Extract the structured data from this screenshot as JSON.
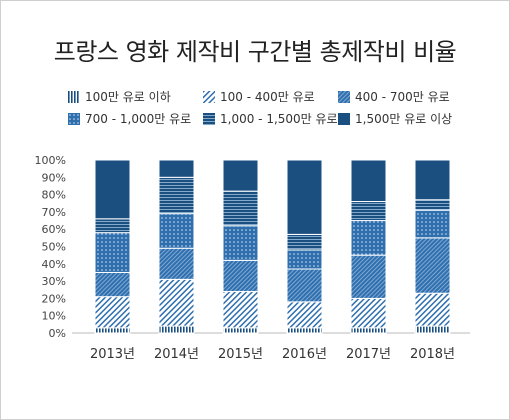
{
  "title": "프랑스 영화 제작비 구간별 총제작비 비율",
  "chart_data": {
    "type": "bar",
    "stacked": true,
    "categories": [
      "2013년",
      "2014년",
      "2015년",
      "2016년",
      "2017년",
      "2018년"
    ],
    "y_tick_labels": [
      "0%",
      "10%",
      "20%",
      "30%",
      "40%",
      "50%",
      "60%",
      "70%",
      "80%",
      "90%",
      "100%"
    ],
    "ylim": [
      0,
      100
    ],
    "grid": false,
    "legend_position": "top",
    "series": [
      {
        "name": "100만 유로 이하",
        "pattern": "vertical",
        "values": [
          3,
          4,
          3,
          3,
          3,
          4
        ]
      },
      {
        "name": "100 - 400만 유로",
        "pattern": "diagonal",
        "values": [
          18,
          27,
          21,
          15,
          17,
          19
        ]
      },
      {
        "name": "400 - 700만 유로",
        "pattern": "diagonal-dense",
        "values": [
          14,
          18,
          18,
          19,
          25,
          32
        ]
      },
      {
        "name": "700 - 1,000만 유로",
        "pattern": "dots",
        "values": [
          23,
          20,
          20,
          11,
          20,
          16
        ]
      },
      {
        "name": "1,000 - 1,500만 유로",
        "pattern": "horizontal",
        "values": [
          8,
          21,
          20,
          9,
          11,
          6
        ]
      },
      {
        "name": "1,500만 유로 이상",
        "pattern": "solid",
        "values": [
          34,
          10,
          18,
          43,
          24,
          23
        ]
      }
    ],
    "colors": {
      "dark": "#1a4f80",
      "mid": "#2f6fae",
      "bg": "#ffffff"
    }
  }
}
